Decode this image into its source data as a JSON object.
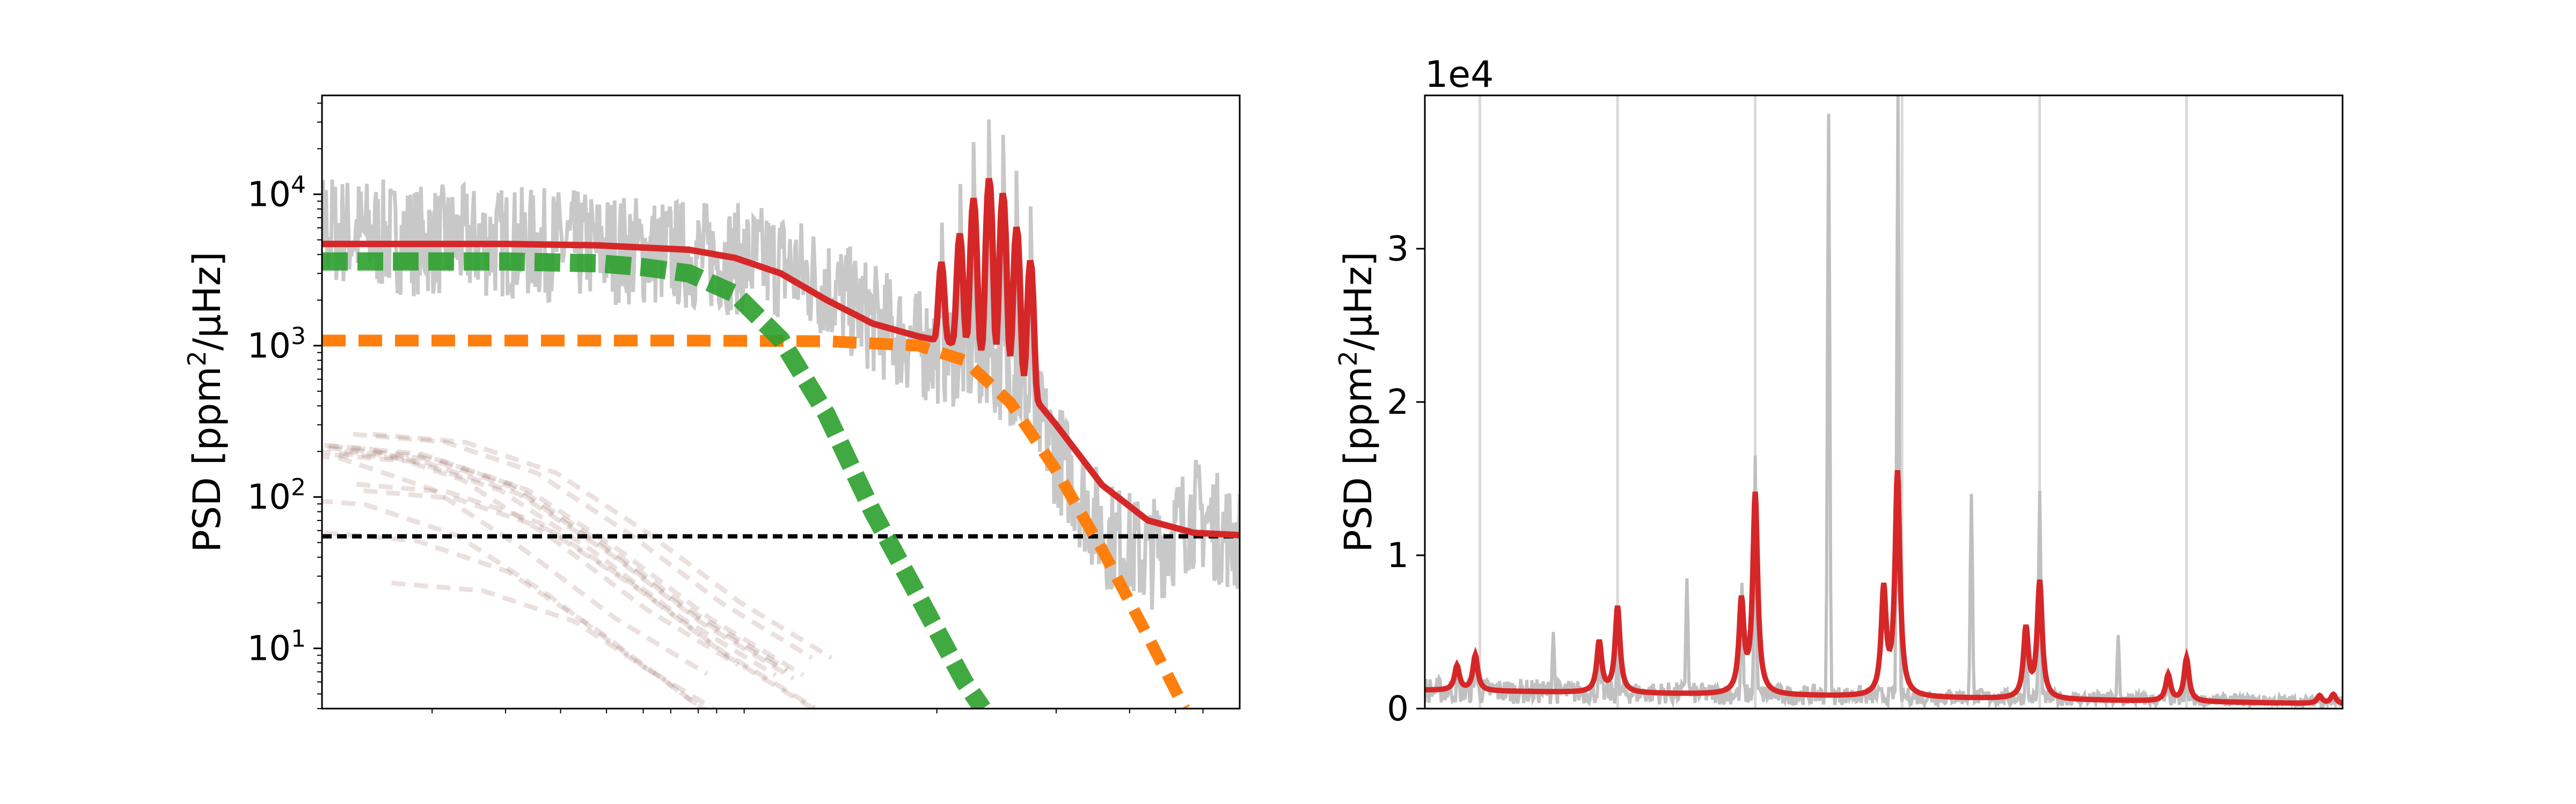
{
  "chart_data": [
    {
      "type": "line",
      "panel": "left",
      "title": "",
      "xlabel": "",
      "ylabel": "PSD [ppm²/μHz]",
      "ylabel_parts": {
        "base": "PSD [ppm",
        "sup": "2",
        "rest": "/μHz]"
      },
      "yscale": "log",
      "ylim": [
        4,
        45000
      ],
      "yticks": [
        {
          "value": 10,
          "base": "10",
          "exp": "1"
        },
        {
          "value": 100,
          "base": "10",
          "exp": "2"
        },
        {
          "value": 1000,
          "base": "10",
          "exp": "3"
        },
        {
          "value": 10000,
          "base": "10",
          "exp": "4"
        }
      ],
      "xtick_labels_shown": false,
      "grid": false,
      "colors": {
        "observed": "#c8c8c8",
        "model": "#d62728",
        "granulation_low": "#2ca02c",
        "granulation_high": "#ff7f0e",
        "white_noise": "#000000",
        "samples": "#8c564b"
      },
      "series": [
        {
          "role": "observed",
          "x": [
            0.0,
            0.1,
            0.2,
            0.3,
            0.4,
            0.5,
            0.55,
            0.6,
            0.65,
            0.7,
            0.75,
            0.8,
            0.85,
            0.9,
            0.95,
            1.0
          ],
          "values": [
            6000,
            5000,
            4800,
            4500,
            4000,
            3500,
            2500,
            1500,
            1000,
            900,
            700,
            200,
            60,
            40,
            80,
            50
          ]
        },
        {
          "role": "model",
          "x": [
            0.0,
            0.1,
            0.2,
            0.3,
            0.4,
            0.45,
            0.5,
            0.55,
            0.6,
            0.65,
            0.7,
            0.75,
            0.8,
            0.85,
            0.9,
            0.95,
            1.0
          ],
          "values": [
            4700,
            4700,
            4700,
            4600,
            4300,
            3800,
            3000,
            2000,
            1400,
            1150,
            1000,
            700,
            300,
            120,
            70,
            58,
            56
          ]
        },
        {
          "role": "granulation_low",
          "x": [
            0.0,
            0.1,
            0.2,
            0.3,
            0.35,
            0.4,
            0.45,
            0.5,
            0.55,
            0.6,
            0.65,
            0.7,
            0.72
          ],
          "values": [
            3600,
            3600,
            3600,
            3500,
            3300,
            3000,
            2200,
            1100,
            350,
            80,
            22,
            6,
            4
          ]
        },
        {
          "role": "granulation_high",
          "x": [
            0.0,
            0.2,
            0.4,
            0.55,
            0.65,
            0.7,
            0.75,
            0.8,
            0.85,
            0.9,
            0.94
          ],
          "values": [
            1080,
            1080,
            1080,
            1070,
            1000,
            800,
            420,
            150,
            45,
            12,
            4
          ]
        },
        {
          "role": "white_noise",
          "x": [
            0.0,
            1.0
          ],
          "values": [
            55,
            55
          ]
        },
        {
          "role": "sample",
          "x": [
            0.0,
            0.1,
            0.2,
            0.3,
            0.4,
            0.5
          ],
          "values": [
            90,
            80,
            50,
            20,
            7,
            3
          ]
        }
      ],
      "oscillation_peaks": {
        "x": [
          0.675,
          0.695,
          0.71,
          0.727,
          0.742,
          0.757,
          0.772
        ],
        "values": [
          2500,
          4500,
          8500,
          12000,
          9500,
          5500,
          3200
        ]
      }
    },
    {
      "type": "line",
      "panel": "right",
      "title": "",
      "xlabel": "",
      "ylabel": "PSD [ppm²/μHz]",
      "ylabel_parts": {
        "base": "PSD [ppm",
        "sup": "2",
        "rest": "/μHz]"
      },
      "yscale": "linear",
      "ylim": [
        0,
        40000
      ],
      "offset_text": "1e4",
      "yticks": [
        {
          "value": 0,
          "label": "0"
        },
        {
          "value": 10000,
          "label": "1"
        },
        {
          "value": 20000,
          "label": "2"
        },
        {
          "value": 30000,
          "label": "3"
        }
      ],
      "xtick_labels_shown": false,
      "grid": false,
      "mode_marker_lines_x": [
        0.06,
        0.21,
        0.36,
        0.52,
        0.67,
        0.83
      ],
      "model_baseline": {
        "x": [
          0.0,
          1.0
        ],
        "values": [
          1200,
          300
        ]
      },
      "model_peaks": {
        "x": [
          0.035,
          0.055,
          0.19,
          0.21,
          0.345,
          0.36,
          0.5,
          0.515,
          0.655,
          0.67,
          0.81,
          0.83,
          0.975,
          0.99
        ],
        "values": [
          1600,
          2300,
          3300,
          5600,
          5900,
          13000,
          6800,
          14500,
          4500,
          7600,
          1700,
          2800,
          500,
          600
        ]
      },
      "observed_peaks": {
        "x": [
          0.035,
          0.055,
          0.14,
          0.19,
          0.21,
          0.285,
          0.345,
          0.36,
          0.44,
          0.515,
          0.595,
          0.655,
          0.67,
          0.755,
          0.81,
          0.83
        ],
        "values": [
          1900,
          3300,
          5000,
          3400,
          4000,
          8500,
          8200,
          16500,
          38800,
          40000,
          14000,
          4500,
          14200,
          4800,
          2200,
          2500
        ]
      }
    }
  ]
}
